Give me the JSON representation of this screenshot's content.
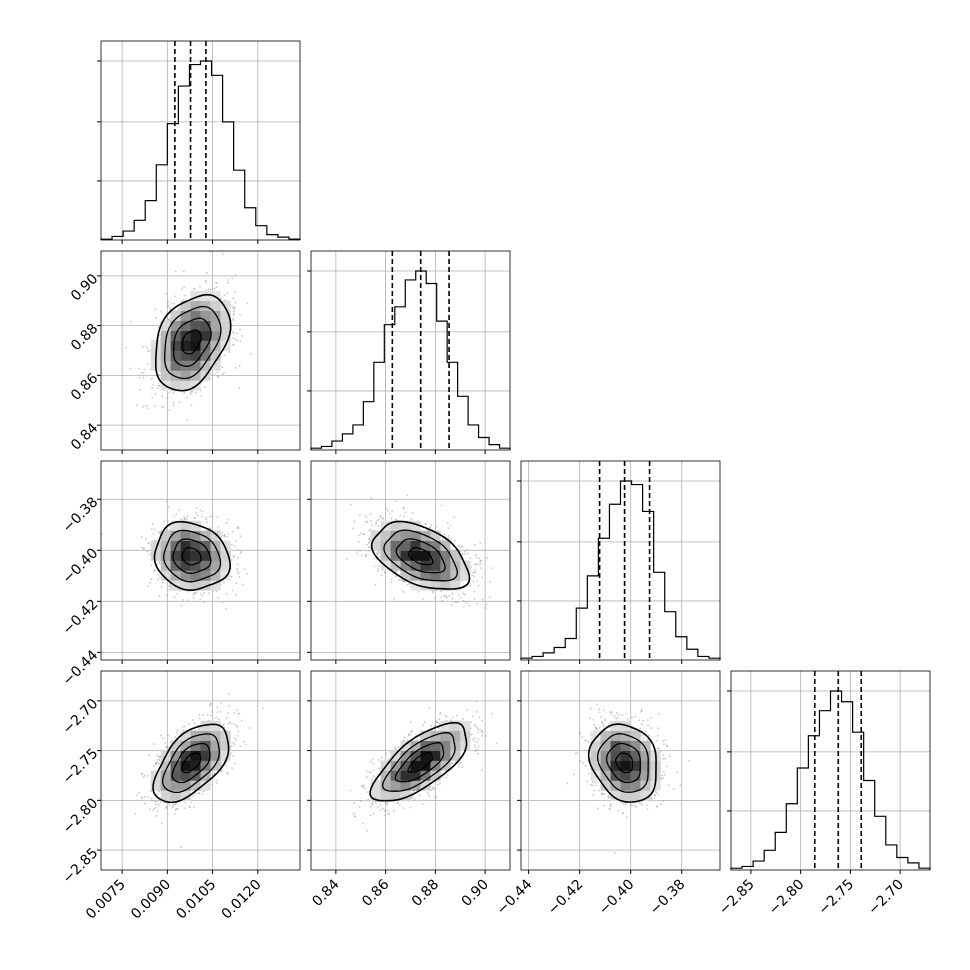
{
  "chart_data": {
    "type": "corner",
    "grid": true,
    "parameters": [
      {
        "range": [
          0.0068,
          0.0134
        ],
        "ticks": [
          0.0075,
          0.009,
          0.0105,
          0.012
        ],
        "tick_labels": [
          "0.0075",
          "0.0090",
          "0.0105",
          "0.0120"
        ],
        "quantiles": [
          0.00925,
          0.00977,
          0.01028
        ],
        "hist": [
          0.004,
          0.02,
          0.05,
          0.11,
          0.22,
          0.42,
          0.65,
          0.86,
          0.98,
          1.0,
          0.92,
          0.66,
          0.39,
          0.18,
          0.08,
          0.03,
          0.016,
          0.005
        ]
      },
      {
        "range": [
          0.83,
          0.91
        ],
        "ticks": [
          0.84,
          0.86,
          0.88,
          0.9
        ],
        "tick_labels": [
          "0.84",
          "0.86",
          "0.88",
          "0.90"
        ],
        "quantiles": [
          0.8627,
          0.8741,
          0.8855
        ],
        "hist": [
          0.01,
          0.02,
          0.05,
          0.09,
          0.14,
          0.27,
          0.49,
          0.7,
          0.8,
          0.95,
          1.0,
          0.93,
          0.72,
          0.49,
          0.3,
          0.14,
          0.07,
          0.03,
          0.01
        ]
      },
      {
        "range": [
          -0.443,
          -0.365
        ],
        "ticks": [
          -0.44,
          -0.42,
          -0.4,
          -0.38
        ],
        "tick_labels": [
          "−0.44",
          "−0.42",
          "−0.40",
          "−0.38"
        ],
        "quantiles": [
          -0.4122,
          -0.4024,
          -0.3926
        ],
        "hist": [
          0.01,
          0.02,
          0.04,
          0.07,
          0.12,
          0.29,
          0.47,
          0.68,
          0.87,
          1.0,
          0.98,
          0.83,
          0.49,
          0.27,
          0.13,
          0.06,
          0.02,
          0.01
        ]
      },
      {
        "range": [
          -2.87,
          -2.67
        ],
        "ticks": [
          -2.85,
          -2.8,
          -2.75,
          -2.7
        ],
        "tick_labels": [
          "−2.85",
          "−2.80",
          "−2.75",
          "−2.70"
        ],
        "quantiles": [
          -2.7858,
          -2.7622,
          -2.7391
        ],
        "hist": [
          0.01,
          0.02,
          0.05,
          0.11,
          0.21,
          0.37,
          0.57,
          0.75,
          0.89,
          1.0,
          0.94,
          0.77,
          0.5,
          0.3,
          0.14,
          0.07,
          0.04,
          0.01
        ]
      }
    ],
    "pairs": [
      {
        "row": 1,
        "col": 0,
        "center": [
          0.0098,
          0.8735
        ],
        "sd": [
          0.00062,
          0.0096
        ],
        "rho": 0.35
      },
      {
        "row": 2,
        "col": 0,
        "center": [
          0.0098,
          -0.4024
        ],
        "sd": [
          0.00062,
          0.0066
        ],
        "rho": -0.12
      },
      {
        "row": 2,
        "col": 1,
        "center": [
          0.8741,
          -0.4024
        ],
        "sd": [
          0.0096,
          0.0066
        ],
        "rho": -0.45
      },
      {
        "row": 3,
        "col": 0,
        "center": [
          0.0098,
          -2.7622
        ],
        "sd": [
          0.00062,
          0.0196
        ],
        "rho": 0.55
      },
      {
        "row": 3,
        "col": 1,
        "center": [
          0.8741,
          -2.7622
        ],
        "sd": [
          0.0096,
          0.0196
        ],
        "rho": 0.7
      },
      {
        "row": 3,
        "col": 2,
        "center": [
          -0.4024,
          -2.7622
        ],
        "sd": [
          0.0066,
          0.0196
        ],
        "rho": -0.18
      }
    ]
  }
}
